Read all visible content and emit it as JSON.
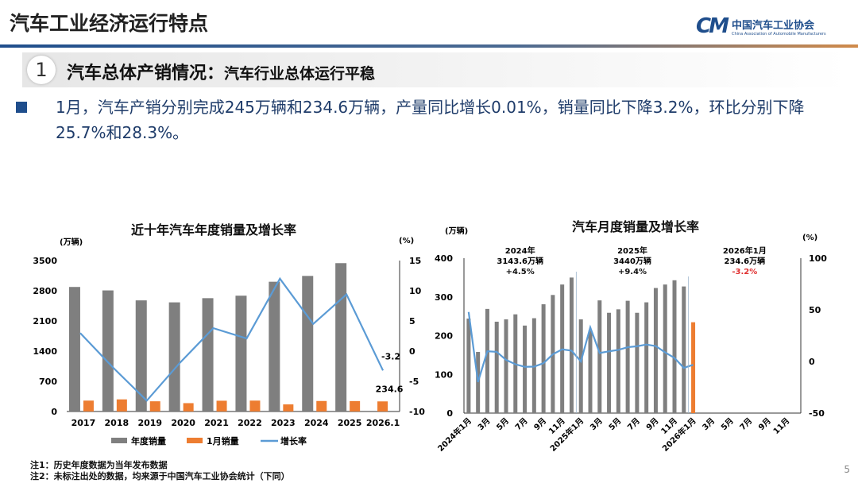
{
  "header": {
    "title": "汽车工业经济运行特点",
    "logo_cn": "中国汽车工业协会",
    "logo_en": "China Association of Automobile Manufacturers",
    "logo_mark": "CM"
  },
  "section": {
    "number": "1",
    "heading": "汽车总体产销情况：",
    "subheading": "汽车行业总体运行平稳"
  },
  "paragraph": "1月，汽车产销分别完成245万辆和234.6万辆，产量同比增长0.01%，销量同比下降3.2%，环比分别下降25.7%和28.3%。",
  "notes": [
    "注1：历史年度数据为当年发布数据",
    "注2：未标注出处的数据，均来源于中国汽车工业协会统计（下同）"
  ],
  "page_number": "5",
  "colors": {
    "bar": "#7f7f7f",
    "jan": "#ed7d31",
    "line": "#5b9bd5",
    "neg": "#e03030"
  },
  "chart_data": [
    {
      "type": "bar+line",
      "title": "近十年汽车年度销量及增长率",
      "ylabel": "(万辆)",
      "y2label": "(%)",
      "ylim": [
        0,
        3500
      ],
      "y2lim": [
        -10,
        15
      ],
      "yticks": [
        "0",
        "700",
        "1400",
        "2100",
        "2800",
        "3500"
      ],
      "y2ticks": [
        "-10",
        "-5",
        "0",
        "5",
        "10",
        "15"
      ],
      "categories": [
        "2017",
        "2018",
        "2019",
        "2020",
        "2021",
        "2022",
        "2023",
        "2024",
        "2025",
        "2026.1"
      ],
      "series": [
        {
          "name": "年度销量",
          "type": "bar",
          "values": [
            2888,
            2808,
            2577,
            2531,
            2628,
            2686,
            3009,
            3144,
            3440,
            null
          ]
        },
        {
          "name": "1月销量",
          "type": "bar",
          "values": [
            253,
            281,
            237,
            194,
            250,
            253,
            165,
            244,
            242,
            234.6
          ]
        },
        {
          "name": "增长率",
          "type": "line",
          "axis": "right",
          "values": [
            3.0,
            -2.8,
            -8.2,
            -1.9,
            3.8,
            2.1,
            12.0,
            4.5,
            9.4,
            -3.2
          ]
        }
      ],
      "data_labels": {
        "growth_last": "-3.2",
        "jan_last": "234.6"
      },
      "legend": "bottom",
      "grid": false
    },
    {
      "type": "bar+line",
      "title": "汽车月度销量及增长率",
      "ylabel": "(万辆)",
      "y2label": "(%)",
      "ylim": [
        0,
        400
      ],
      "y2lim": [
        -50,
        100
      ],
      "yticks": [
        "0",
        "100",
        "200",
        "300",
        "400"
      ],
      "y2ticks": [
        "-50",
        "0",
        "50",
        "100"
      ],
      "xticks": [
        "2024年1月",
        "3月",
        "5月",
        "7月",
        "9月",
        "11月",
        "2025年1月",
        "3月",
        "5月",
        "7月",
        "9月",
        "11月",
        "2026年1月",
        "3月",
        "5月",
        "7月",
        "9月",
        "11月"
      ],
      "sales": [
        244,
        158,
        269,
        236,
        242,
        255,
        226,
        245,
        281,
        305,
        332,
        350,
        242,
        213,
        291,
        259,
        268,
        290,
        259,
        286,
        323,
        332,
        343,
        327,
        234.6
      ],
      "growth": [
        47.9,
        -19.9,
        9.9,
        9.3,
        1.5,
        -2.7,
        -5.2,
        -5.0,
        -1.7,
        7.0,
        11.7,
        10.5,
        0,
        33,
        8.2,
        9.8,
        11.2,
        13.8,
        14.7,
        16.4,
        14.9,
        8.8,
        3.4,
        -6.2,
        -3.2
      ],
      "annotations": [
        {
          "l1": "2024年",
          "l2": "3143.6万辆",
          "l3": "+4.5%"
        },
        {
          "l1": "2025年",
          "l2": "3440万辆",
          "l3": "+9.4%"
        },
        {
          "l1": "2026年1月",
          "l2": "234.6万辆",
          "l3": "-3.2%"
        }
      ],
      "grid": false
    }
  ]
}
